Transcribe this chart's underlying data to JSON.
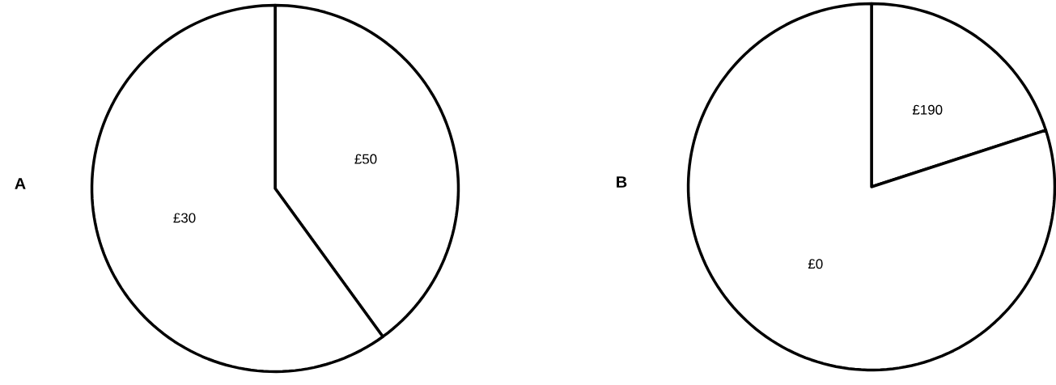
{
  "chart_data": [
    {
      "type": "pie",
      "title": "A",
      "categories": [
        "£50",
        "£30"
      ],
      "values": [
        40,
        60
      ],
      "colors": [
        "#ffffff",
        "#ffffff"
      ]
    },
    {
      "type": "pie",
      "title": "B",
      "categories": [
        "£190",
        "£0"
      ],
      "values": [
        20,
        80
      ],
      "colors": [
        "#ffffff",
        "#ffffff"
      ]
    }
  ]
}
